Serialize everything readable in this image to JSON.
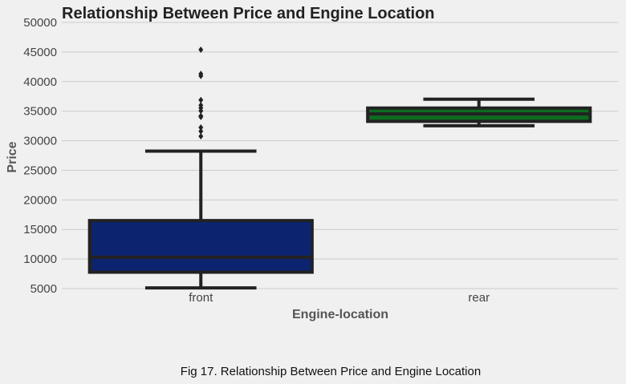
{
  "figure_caption": "Fig 17. Relationship Between Price and Engine Location",
  "chart_data": {
    "type": "box",
    "title": "Relationship Between Price and Engine Location",
    "xlabel": "Engine-location",
    "ylabel": "Price",
    "ylim": [
      5000,
      50000
    ],
    "yticks": [
      5000,
      10000,
      15000,
      20000,
      25000,
      30000,
      35000,
      40000,
      45000,
      50000
    ],
    "grid": "horizontal",
    "categories": [
      "front",
      "rear"
    ],
    "boxes": [
      {
        "category": "front",
        "whisker_low": 5118,
        "q1": 7775,
        "median": 10295,
        "q3": 16500,
        "whisker_high": 28248,
        "outliers": [
          30760,
          31600,
          32250,
          34028,
          34184,
          35056,
          35550,
          36000,
          36880,
          40960,
          41315,
          45400
        ],
        "color": "#0c2470"
      },
      {
        "category": "rear",
        "whisker_low": 32528,
        "q1": 33278,
        "median": 34528,
        "q3": 35528,
        "whisker_high": 37028,
        "outliers": [],
        "color": "#0d6b1f"
      }
    ]
  }
}
